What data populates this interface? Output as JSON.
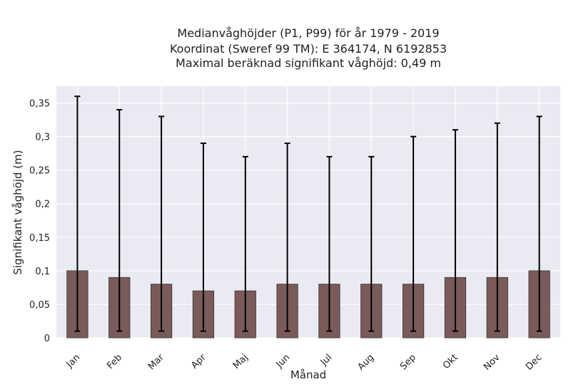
{
  "chart_data": {
    "type": "bar",
    "title_lines": [
      "Medianvåghöjder (P1, P99) för år 1979 - 2019",
      "Koordinat (Sweref 99 TM): E 364174, N 6192853",
      "Maximal beräknad signifikant våghöjd: 0,49 m"
    ],
    "xlabel": "Månad",
    "ylabel": "Signifikant våghöjd (m)",
    "categories": [
      "Jan",
      "Feb",
      "Mar",
      "Apr",
      "Maj",
      "Jun",
      "Jul",
      "Aug",
      "Sep",
      "Okt",
      "Nov",
      "Dec"
    ],
    "values": [
      0.1,
      0.09,
      0.08,
      0.07,
      0.07,
      0.08,
      0.08,
      0.08,
      0.08,
      0.09,
      0.09,
      0.1
    ],
    "p1": [
      0.01,
      0.01,
      0.01,
      0.01,
      0.01,
      0.01,
      0.01,
      0.01,
      0.01,
      0.01,
      0.01,
      0.01
    ],
    "p99": [
      0.36,
      0.34,
      0.33,
      0.29,
      0.27,
      0.29,
      0.27,
      0.27,
      0.3,
      0.31,
      0.32,
      0.33
    ],
    "ylim": [
      0,
      0.375
    ],
    "yticks": [
      0,
      0.05,
      0.1,
      0.15,
      0.2,
      0.25,
      0.3,
      0.35
    ],
    "ytick_labels": [
      "0",
      "0,05",
      "0,1",
      "0,15",
      "0,2",
      "0,25",
      "0,3",
      "0,35"
    ],
    "grid": true,
    "colors": {
      "background": "#eaeaf2",
      "grid": "#ffffff",
      "bar": "#7b5a5a",
      "bar_edge": "#333333",
      "errorbar": "#000000"
    }
  }
}
